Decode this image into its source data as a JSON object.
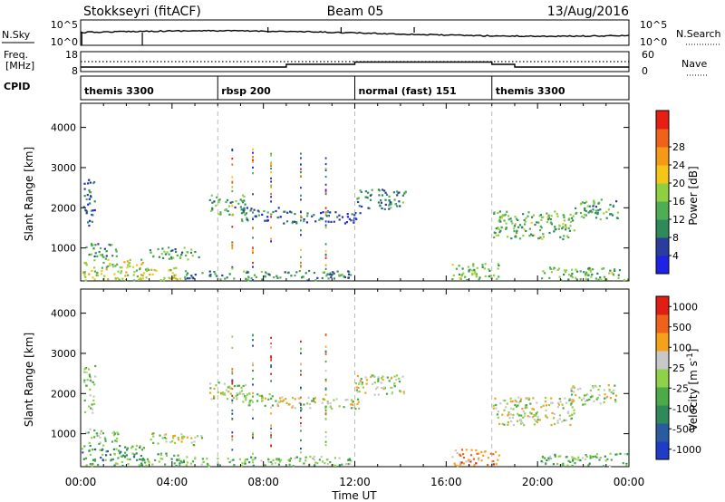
{
  "header": {
    "station": "Stokkseyri (fitACF)",
    "beam": "Beam 05",
    "date": "13/Aug/2016"
  },
  "nsky_panel": {
    "left_label": "N.Sky",
    "right_label": "N.Search",
    "left_ticks": [
      "10^5",
      "10^0"
    ],
    "right_ticks": [
      "10^5",
      "10^0"
    ]
  },
  "freq_panel": {
    "left_label_1": "Freq.",
    "left_label_2": "[MHz]",
    "right_label": "Nave",
    "left_ticks": [
      "18",
      "8"
    ],
    "right_ticks": [
      "60",
      "0"
    ]
  },
  "cpid_panel": {
    "label": "CPID",
    "segments": [
      {
        "name": "themis 3300",
        "start_hour": 0
      },
      {
        "name": "rbsp 200",
        "start_hour": 6
      },
      {
        "name": "normal (fast) 151",
        "start_hour": 12
      },
      {
        "name": "themis 3300",
        "start_hour": 18
      }
    ]
  },
  "chart_data": [
    {
      "type": "heatmap",
      "panel": "power",
      "ylabel": "Slant Range [km]",
      "ylim": [
        180,
        4600
      ],
      "yticks": [
        "1000",
        "2000",
        "3000",
        "4000"
      ],
      "xlim_hours": [
        0,
        24
      ],
      "colorbar": {
        "label": "Power [dB]",
        "ticks": [
          "4",
          "8",
          "12",
          "16",
          "20",
          "24",
          "28"
        ],
        "colors": [
          "#1e22e6",
          "#2a3c9e",
          "#2e8a5a",
          "#4fae55",
          "#8fd040",
          "#f5c518",
          "#f59a16",
          "#f0621a",
          "#e81e14"
        ]
      },
      "regions": [
        {
          "h0": 0.0,
          "h1": 2.8,
          "r0": 180,
          "r1": 700,
          "level": 0.55
        },
        {
          "h0": 0.2,
          "h1": 1.6,
          "r0": 700,
          "r1": 1100,
          "level": 0.3
        },
        {
          "h0": 0.1,
          "h1": 0.6,
          "r0": 1500,
          "r1": 2700,
          "level": 0.2
        },
        {
          "h0": 2.6,
          "h1": 4.4,
          "r0": 180,
          "r1": 500,
          "level": 0.55
        },
        {
          "h0": 3.0,
          "h1": 5.3,
          "r0": 700,
          "r1": 1000,
          "level": 0.35
        },
        {
          "h0": 4.4,
          "h1": 11.8,
          "r0": 180,
          "r1": 420,
          "level": 0.3
        },
        {
          "h0": 5.6,
          "h1": 7.2,
          "r0": 1800,
          "r1": 2300,
          "level": 0.35
        },
        {
          "h0": 7.0,
          "h1": 8.7,
          "r0": 1650,
          "r1": 2000,
          "level": 0.25
        },
        {
          "h0": 8.6,
          "h1": 12.2,
          "r0": 1600,
          "r1": 1900,
          "level": 0.2
        },
        {
          "h0": 12.0,
          "h1": 14.2,
          "r0": 1950,
          "r1": 2450,
          "level": 0.3
        },
        {
          "h0": 16.2,
          "h1": 18.3,
          "r0": 180,
          "r1": 600,
          "level": 0.4
        },
        {
          "h0": 18.0,
          "h1": 21.6,
          "r0": 1200,
          "r1": 1900,
          "level": 0.4
        },
        {
          "h0": 21.4,
          "h1": 23.5,
          "r0": 1700,
          "r1": 2200,
          "level": 0.35
        },
        {
          "h0": 20.0,
          "h1": 24.0,
          "r0": 180,
          "r1": 500,
          "level": 0.4
        }
      ]
    },
    {
      "type": "heatmap",
      "panel": "velocity",
      "ylabel": "Slant Range [km]",
      "ylim": [
        180,
        4600
      ],
      "yticks": [
        "1000",
        "2000",
        "3000",
        "4000"
      ],
      "xlabel": "Time UT",
      "xticks": [
        "00:00",
        "04:00",
        "08:00",
        "12:00",
        "16:00",
        "20:00",
        "00:00"
      ],
      "xlim_hours": [
        0,
        24
      ],
      "colorbar": {
        "label": "Velocity [m s",
        "label_sup": "-1",
        "label_end": "]",
        "ticks": [
          "1000",
          "500",
          "100",
          "25",
          "-25",
          "-100",
          "-500",
          "-1000"
        ],
        "colors": [
          "#1e3cc8",
          "#2a5aa0",
          "#2e8a5a",
          "#4caa48",
          "#8ed24a",
          "#c8c8c8",
          "#f5a21a",
          "#f0621a",
          "#e01e14"
        ]
      },
      "regions": [
        {
          "h0": 0.0,
          "h1": 2.8,
          "r0": 180,
          "r1": 700,
          "level": 0.35
        },
        {
          "h0": 0.2,
          "h1": 1.6,
          "r0": 700,
          "r1": 1100,
          "level": 0.5
        },
        {
          "h0": 0.1,
          "h1": 0.6,
          "r0": 1500,
          "r1": 2700,
          "level": 0.5
        },
        {
          "h0": 2.6,
          "h1": 4.4,
          "r0": 180,
          "r1": 500,
          "level": 0.4
        },
        {
          "h0": 3.0,
          "h1": 5.3,
          "r0": 700,
          "r1": 1000,
          "level": 0.56
        },
        {
          "h0": 4.4,
          "h1": 11.8,
          "r0": 180,
          "r1": 420,
          "level": 0.45
        },
        {
          "h0": 5.6,
          "h1": 7.2,
          "r0": 1800,
          "r1": 2300,
          "level": 0.56
        },
        {
          "h0": 7.0,
          "h1": 8.7,
          "r0": 1650,
          "r1": 2000,
          "level": 0.56
        },
        {
          "h0": 8.6,
          "h1": 12.2,
          "r0": 1600,
          "r1": 1900,
          "level": 0.56
        },
        {
          "h0": 12.0,
          "h1": 14.2,
          "r0": 1950,
          "r1": 2450,
          "level": 0.56
        },
        {
          "h0": 16.2,
          "h1": 18.3,
          "r0": 180,
          "r1": 600,
          "level": 0.75
        },
        {
          "h0": 18.0,
          "h1": 21.6,
          "r0": 1200,
          "r1": 1900,
          "level": 0.56
        },
        {
          "h0": 21.4,
          "h1": 23.5,
          "r0": 1700,
          "r1": 2200,
          "level": 0.56
        },
        {
          "h0": 20.0,
          "h1": 24.0,
          "r0": 180,
          "r1": 500,
          "level": 0.4
        }
      ]
    }
  ]
}
